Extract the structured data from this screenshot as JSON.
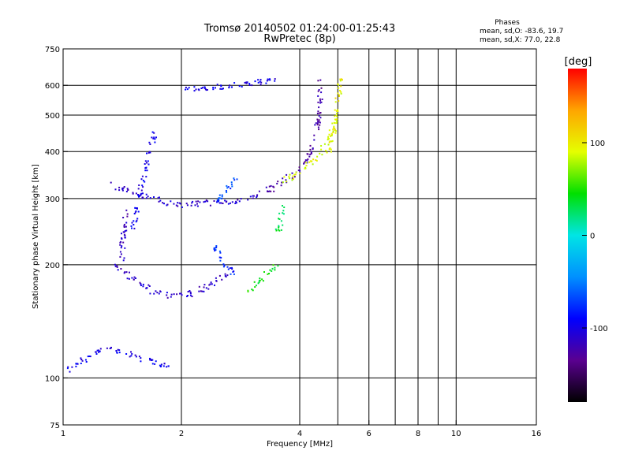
{
  "chart_data": {
    "type": "scatter",
    "title": "Tromsø 20140502 01:24:00-01:25:43",
    "subtitle": "RwPretec (8p)",
    "xlabel": "Frequency [MHz]",
    "ylabel": "Stationary phase Virtual Height [km]",
    "x_scale": "log",
    "y_scale": "log",
    "xlim": [
      1,
      16
    ],
    "ylim": [
      75,
      750
    ],
    "x_ticks": [
      1,
      2,
      4,
      6,
      8,
      10,
      16
    ],
    "y_ticks": [
      75,
      100,
      200,
      300,
      400,
      500,
      600,
      750
    ],
    "x_gridlines": [
      2,
      4,
      5,
      6,
      7,
      8,
      9,
      10
    ],
    "y_gridlines": [
      100,
      200,
      300,
      400,
      500,
      600
    ],
    "grid": true,
    "phases_info": {
      "heading": "Phases",
      "line_o": "mean, sd,O:  -83.6, 19.7",
      "line_x": "mean, sd,X:  77.0, 22.8"
    },
    "colorbar": {
      "label": "[deg]",
      "range": [
        -180,
        180
      ],
      "ticks": [
        100,
        0,
        -100
      ],
      "colormap": [
        "#000000",
        "#5a0090",
        "#0000ff",
        "#0090ff",
        "#00e5e5",
        "#00e000",
        "#e5ff00",
        "#ffa500",
        "#ff0000"
      ]
    },
    "series": [
      {
        "segments": [
          {
            "f": [
              1.3,
              1.45,
              1.6,
              1.8,
              2.0,
              2.2,
              2.5,
              2.8,
              3.1
            ],
            "h": [
              330,
              315,
              305,
              295,
              290,
              292,
              295,
              298,
              305
            ],
            "phase": -110
          },
          {
            "f": [
              3.1,
              3.4,
              3.7,
              4.0,
              4.2,
              4.35,
              4.45,
              4.5
            ],
            "h": [
              315,
              320,
              340,
              360,
              390,
              430,
              500,
              620
            ],
            "phase": -125
          },
          {
            "f": [
              1.35,
              1.5,
              1.7,
              1.9,
              2.1,
              2.3,
              2.5,
              2.7
            ],
            "h": [
              200,
              185,
              170,
              165,
              168,
              175,
              185,
              195
            ],
            "phase": -110
          },
          {
            "f": [
              1.5,
              1.55,
              1.6,
              1.65,
              1.7
            ],
            "h": [
              250,
              300,
              350,
              400,
              450
            ],
            "phase": -100
          },
          {
            "f": [
              1.4,
              1.42,
              1.45
            ],
            "h": [
              200,
              250,
              280
            ],
            "phase": -115
          },
          {
            "f": [
              1.02,
              1.1,
              1.2,
              1.35,
              1.5,
              1.7,
              1.9
            ],
            "h": [
              105,
              110,
              118,
              120,
              115,
              110,
              108
            ],
            "phase": -100
          },
          {
            "f": [
              2.0,
              2.3,
              2.6,
              2.9,
              3.2,
              3.5
            ],
            "h": [
              585,
              595,
              600,
              605,
              615,
              630
            ],
            "phase": -100
          },
          {
            "f": [
              2.4,
              2.6,
              2.8
            ],
            "h": [
              290,
              320,
              345
            ],
            "phase": -70
          },
          {
            "f": [
              2.4,
              2.5,
              2.7
            ],
            "h": [
              230,
              210,
              190
            ],
            "phase": -75
          }
        ]
      },
      {
        "segments": [
          {
            "f": [
              3.6,
              3.9,
              4.2,
              4.5,
              4.8,
              5.0
            ],
            "h": [
              335,
              350,
              370,
              400,
              450,
              500
            ],
            "phase": 90
          },
          {
            "f": [
              4.7,
              4.85,
              4.95,
              5.0,
              5.05
            ],
            "h": [
              400,
              450,
              520,
              580,
              640
            ],
            "phase": 95
          },
          {
            "f": [
              2.9,
              3.1,
              3.3,
              3.5
            ],
            "h": [
              170,
              180,
              190,
              200
            ],
            "phase": 45
          },
          {
            "f": [
              3.5,
              3.55,
              3.6
            ],
            "h": [
              240,
              260,
              290
            ],
            "phase": 30
          }
        ]
      }
    ]
  }
}
